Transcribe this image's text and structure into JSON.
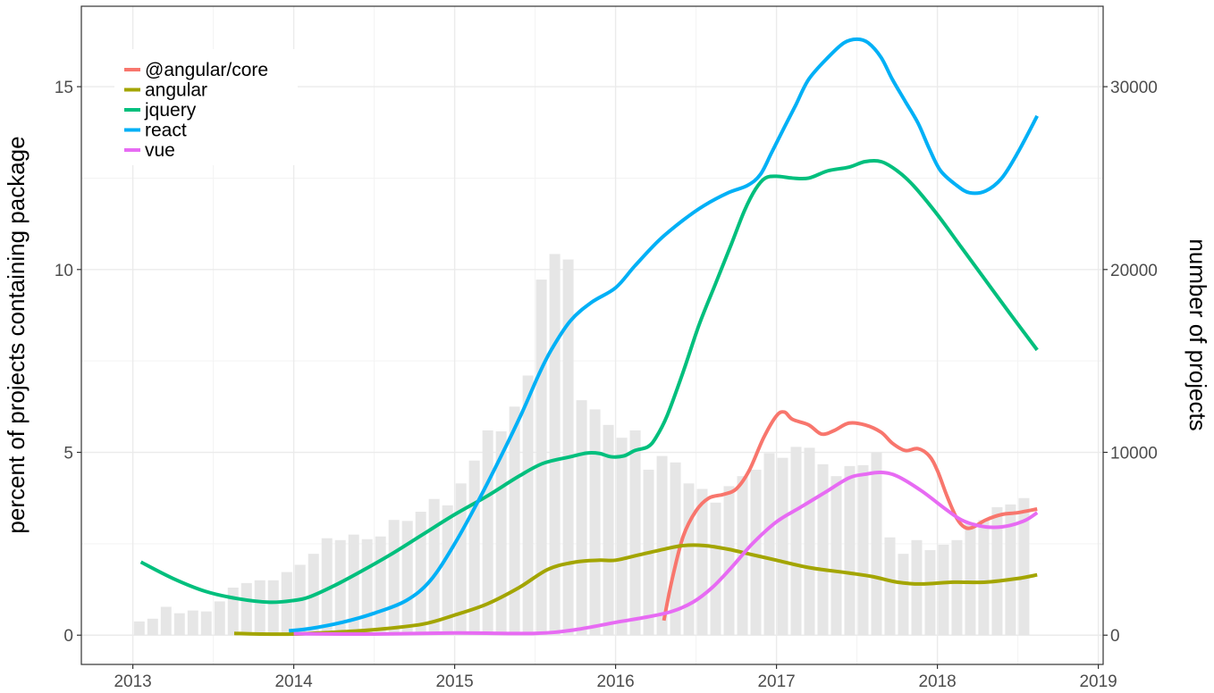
{
  "chart_data": {
    "type": "line+bar",
    "title": "",
    "xlabel": "",
    "ylabel_left": "percent of projects containing package",
    "ylabel_right": "number of projects",
    "x_ticks": [
      "2013",
      "2014",
      "2015",
      "2016",
      "2017",
      "2018",
      "2019"
    ],
    "y_ticks_left": [
      "0",
      "5",
      "10",
      "15"
    ],
    "y_ticks_right": [
      "0",
      "10000",
      "20000",
      "30000"
    ],
    "xlim": [
      2012.68,
      2019.03
    ],
    "ylim_left": [
      -0.8,
      17.2
    ],
    "ylim_right": [
      -1600,
      34400
    ],
    "legend_position": "top-left",
    "bars": {
      "name": "number of projects",
      "start": 2013.04,
      "step": 0.0833,
      "values": [
        750,
        900,
        1550,
        1200,
        1350,
        1300,
        1850,
        2600,
        2850,
        3000,
        3000,
        3450,
        3850,
        4450,
        5300,
        5200,
        5500,
        5250,
        5400,
        6300,
        6250,
        6750,
        7450,
        7100,
        8300,
        9550,
        11200,
        11150,
        12500,
        14200,
        19450,
        20850,
        20550,
        12850,
        12350,
        11500,
        10800,
        11200,
        9050,
        9800,
        9450,
        8300,
        8000,
        7250,
        8150,
        8700,
        9050,
        9950,
        9700,
        10300,
        10250,
        9350,
        8700,
        9250,
        9300,
        10000,
        5350,
        4450,
        5200,
        4650,
        4950,
        5200,
        6150,
        6300,
        7000,
        7150,
        7500
      ]
    },
    "series": [
      {
        "name": "@angular/core",
        "color": "#F8766D",
        "points": [
          [
            2016.3,
            0.4
          ],
          [
            2016.35,
            1.5
          ],
          [
            2016.42,
            2.7
          ],
          [
            2016.5,
            3.4
          ],
          [
            2016.58,
            3.75
          ],
          [
            2016.67,
            3.85
          ],
          [
            2016.75,
            4.0
          ],
          [
            2016.83,
            4.5
          ],
          [
            2016.92,
            5.4
          ],
          [
            2017.0,
            6.0
          ],
          [
            2017.05,
            6.1
          ],
          [
            2017.1,
            5.9
          ],
          [
            2017.2,
            5.75
          ],
          [
            2017.28,
            5.5
          ],
          [
            2017.36,
            5.6
          ],
          [
            2017.45,
            5.8
          ],
          [
            2017.55,
            5.75
          ],
          [
            2017.65,
            5.55
          ],
          [
            2017.72,
            5.25
          ],
          [
            2017.8,
            5.05
          ],
          [
            2017.88,
            5.1
          ],
          [
            2017.95,
            4.9
          ],
          [
            2018.0,
            4.5
          ],
          [
            2018.06,
            3.8
          ],
          [
            2018.12,
            3.2
          ],
          [
            2018.17,
            2.95
          ],
          [
            2018.22,
            2.95
          ],
          [
            2018.3,
            3.15
          ],
          [
            2018.4,
            3.3
          ],
          [
            2018.5,
            3.35
          ],
          [
            2018.62,
            3.45
          ]
        ]
      },
      {
        "name": "angular",
        "color": "#A3A500",
        "points": [
          [
            2013.63,
            0.05
          ],
          [
            2013.8,
            0.03
          ],
          [
            2014.0,
            0.03
          ],
          [
            2014.2,
            0.07
          ],
          [
            2014.5,
            0.15
          ],
          [
            2014.8,
            0.3
          ],
          [
            2015.0,
            0.55
          ],
          [
            2015.2,
            0.85
          ],
          [
            2015.4,
            1.3
          ],
          [
            2015.58,
            1.8
          ],
          [
            2015.75,
            2.0
          ],
          [
            2015.9,
            2.05
          ],
          [
            2016.0,
            2.05
          ],
          [
            2016.15,
            2.2
          ],
          [
            2016.3,
            2.35
          ],
          [
            2016.42,
            2.45
          ],
          [
            2016.55,
            2.45
          ],
          [
            2016.7,
            2.35
          ],
          [
            2016.85,
            2.2
          ],
          [
            2017.0,
            2.05
          ],
          [
            2017.2,
            1.85
          ],
          [
            2017.45,
            1.7
          ],
          [
            2017.6,
            1.6
          ],
          [
            2017.75,
            1.45
          ],
          [
            2017.9,
            1.4
          ],
          [
            2018.1,
            1.45
          ],
          [
            2018.3,
            1.45
          ],
          [
            2018.5,
            1.55
          ],
          [
            2018.62,
            1.65
          ]
        ]
      },
      {
        "name": "jquery",
        "color": "#00BF7D",
        "points": [
          [
            2013.05,
            2.0
          ],
          [
            2013.25,
            1.55
          ],
          [
            2013.45,
            1.2
          ],
          [
            2013.65,
            1.0
          ],
          [
            2013.85,
            0.9
          ],
          [
            2014.0,
            0.95
          ],
          [
            2014.1,
            1.05
          ],
          [
            2014.25,
            1.35
          ],
          [
            2014.4,
            1.7
          ],
          [
            2014.6,
            2.2
          ],
          [
            2014.8,
            2.75
          ],
          [
            2015.0,
            3.3
          ],
          [
            2015.2,
            3.8
          ],
          [
            2015.4,
            4.35
          ],
          [
            2015.55,
            4.7
          ],
          [
            2015.72,
            4.88
          ],
          [
            2015.82,
            4.98
          ],
          [
            2015.9,
            4.97
          ],
          [
            2015.97,
            4.88
          ],
          [
            2016.05,
            4.9
          ],
          [
            2016.12,
            5.05
          ],
          [
            2016.2,
            5.15
          ],
          [
            2016.25,
            5.4
          ],
          [
            2016.32,
            6.0
          ],
          [
            2016.42,
            7.2
          ],
          [
            2016.52,
            8.5
          ],
          [
            2016.62,
            9.6
          ],
          [
            2016.72,
            10.7
          ],
          [
            2016.8,
            11.6
          ],
          [
            2016.87,
            12.2
          ],
          [
            2016.93,
            12.5
          ],
          [
            2017.0,
            12.55
          ],
          [
            2017.1,
            12.5
          ],
          [
            2017.2,
            12.5
          ],
          [
            2017.32,
            12.7
          ],
          [
            2017.45,
            12.8
          ],
          [
            2017.55,
            12.95
          ],
          [
            2017.65,
            12.95
          ],
          [
            2017.75,
            12.7
          ],
          [
            2017.85,
            12.3
          ],
          [
            2018.0,
            11.5
          ],
          [
            2018.15,
            10.6
          ],
          [
            2018.3,
            9.7
          ],
          [
            2018.45,
            8.8
          ],
          [
            2018.62,
            7.8
          ]
        ]
      },
      {
        "name": "react",
        "color": "#00B0F6",
        "points": [
          [
            2013.97,
            0.12
          ],
          [
            2014.1,
            0.18
          ],
          [
            2014.3,
            0.35
          ],
          [
            2014.5,
            0.6
          ],
          [
            2014.7,
            0.95
          ],
          [
            2014.85,
            1.5
          ],
          [
            2015.0,
            2.5
          ],
          [
            2015.15,
            3.7
          ],
          [
            2015.3,
            5.0
          ],
          [
            2015.42,
            6.1
          ],
          [
            2015.52,
            7.1
          ],
          [
            2015.6,
            7.8
          ],
          [
            2015.72,
            8.6
          ],
          [
            2015.85,
            9.1
          ],
          [
            2016.0,
            9.5
          ],
          [
            2016.12,
            10.1
          ],
          [
            2016.27,
            10.8
          ],
          [
            2016.42,
            11.35
          ],
          [
            2016.55,
            11.75
          ],
          [
            2016.7,
            12.1
          ],
          [
            2016.82,
            12.3
          ],
          [
            2016.9,
            12.6
          ],
          [
            2016.97,
            13.2
          ],
          [
            2017.05,
            13.9
          ],
          [
            2017.12,
            14.5
          ],
          [
            2017.2,
            15.2
          ],
          [
            2017.32,
            15.8
          ],
          [
            2017.42,
            16.2
          ],
          [
            2017.5,
            16.3
          ],
          [
            2017.57,
            16.2
          ],
          [
            2017.65,
            15.8
          ],
          [
            2017.72,
            15.2
          ],
          [
            2017.8,
            14.6
          ],
          [
            2017.88,
            14.0
          ],
          [
            2017.95,
            13.3
          ],
          [
            2018.02,
            12.7
          ],
          [
            2018.12,
            12.3
          ],
          [
            2018.2,
            12.1
          ],
          [
            2018.3,
            12.15
          ],
          [
            2018.4,
            12.5
          ],
          [
            2018.5,
            13.2
          ],
          [
            2018.62,
            14.2
          ]
        ]
      },
      {
        "name": "vue",
        "color": "#E76BF3",
        "points": [
          [
            2014.0,
            0.04
          ],
          [
            2014.5,
            0.03
          ],
          [
            2015.0,
            0.06
          ],
          [
            2015.5,
            0.05
          ],
          [
            2015.75,
            0.15
          ],
          [
            2016.0,
            0.35
          ],
          [
            2016.2,
            0.5
          ],
          [
            2016.35,
            0.65
          ],
          [
            2016.48,
            0.9
          ],
          [
            2016.6,
            1.3
          ],
          [
            2016.72,
            1.85
          ],
          [
            2016.85,
            2.5
          ],
          [
            2017.0,
            3.1
          ],
          [
            2017.15,
            3.5
          ],
          [
            2017.3,
            3.9
          ],
          [
            2017.45,
            4.3
          ],
          [
            2017.55,
            4.4
          ],
          [
            2017.65,
            4.45
          ],
          [
            2017.75,
            4.35
          ],
          [
            2017.9,
            3.95
          ],
          [
            2018.05,
            3.45
          ],
          [
            2018.15,
            3.15
          ],
          [
            2018.25,
            3.0
          ],
          [
            2018.35,
            2.95
          ],
          [
            2018.45,
            3.0
          ],
          [
            2018.55,
            3.15
          ],
          [
            2018.62,
            3.35
          ]
        ]
      }
    ]
  }
}
